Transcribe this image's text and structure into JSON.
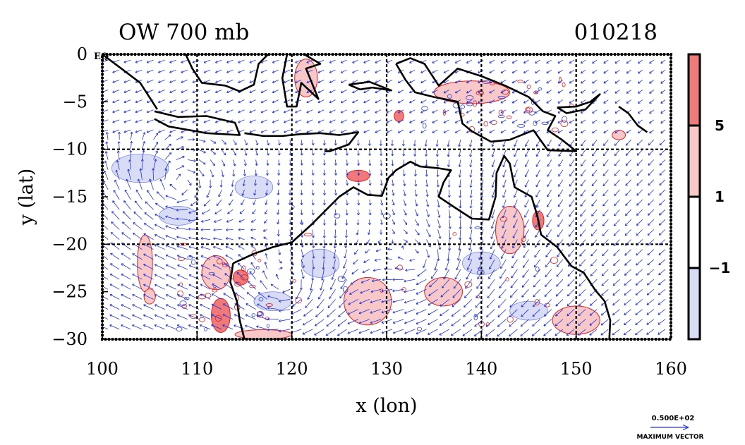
{
  "chart_data": {
    "type": "map",
    "title_left": "OW 700 mb",
    "title_right": "010218",
    "xlabel": "x (lon)",
    "ylabel": "y (lat)",
    "xlim": [
      100,
      160
    ],
    "ylim": [
      -30,
      0
    ],
    "xticks": [
      100,
      110,
      120,
      130,
      140,
      150,
      160
    ],
    "yticks": [
      0,
      -5,
      -10,
      -15,
      -20,
      -25,
      -30
    ],
    "ytick_labels": [
      "0",
      "−5",
      "−10",
      "−15",
      "−20",
      "−25",
      "−30"
    ],
    "eq_label": "EQ",
    "grid_dashed_lon": [
      110,
      120,
      130,
      140,
      150
    ],
    "grid_dashed_lat": [
      -10,
      -20
    ],
    "colorbar": {
      "labels": [
        "5",
        "1",
        "−1"
      ],
      "label_values": [
        5,
        1,
        -1
      ],
      "bands": [
        {
          "from": 5,
          "to": 9,
          "color": "#f07a7a"
        },
        {
          "from": 1,
          "to": 5,
          "color": "#f8c8c8"
        },
        {
          "from": -1,
          "to": 1,
          "color": "#ffffff"
        },
        {
          "from": -5,
          "to": -1,
          "color": "#d8dcf4"
        }
      ]
    },
    "vector_reference": {
      "value": "0.500E+02",
      "label": "MAXIMUM VECTOR"
    },
    "colors": {
      "positive": "#f07a7a",
      "weak_positive": "#f8c8c8",
      "negative": "#d8dcf4",
      "vectors": "#2233dd",
      "coast": "#000000"
    },
    "positive_areas": [
      {
        "lon": 127,
        "lat": -12.8,
        "rx": 1.2,
        "ry": 0.6,
        "strong": true
      },
      {
        "lon": 131.3,
        "lat": -6.5,
        "rx": 0.5,
        "ry": 0.6,
        "strong": true
      },
      {
        "lon": 114.6,
        "lat": -23.5,
        "rx": 0.8,
        "ry": 0.8,
        "strong": true
      },
      {
        "lon": 112.5,
        "lat": -27.5,
        "rx": 1.0,
        "ry": 1.8,
        "strong": true
      },
      {
        "lon": 143,
        "lat": -18.5,
        "rx": 1.5,
        "ry": 2.5,
        "strong": false
      },
      {
        "lon": 146,
        "lat": -17.5,
        "rx": 0.6,
        "ry": 1.0,
        "strong": true
      },
      {
        "lon": 104.5,
        "lat": -22,
        "rx": 0.8,
        "ry": 3,
        "strong": false
      },
      {
        "lon": 112,
        "lat": -23,
        "rx": 1.5,
        "ry": 1.8,
        "strong": false
      },
      {
        "lon": 128,
        "lat": -26,
        "rx": 2.5,
        "ry": 2.5,
        "strong": false
      },
      {
        "lon": 136,
        "lat": -25,
        "rx": 2,
        "ry": 1.5,
        "strong": false
      },
      {
        "lon": 150,
        "lat": -28,
        "rx": 2.5,
        "ry": 1.5,
        "strong": false
      },
      {
        "lon": 139,
        "lat": -4,
        "rx": 4,
        "ry": 1.2,
        "strong": false
      },
      {
        "lon": 121.5,
        "lat": -2.5,
        "rx": 1.2,
        "ry": 2,
        "strong": false
      },
      {
        "lon": 154.5,
        "lat": -8.5,
        "rx": 0.7,
        "ry": 0.5,
        "strong": false
      },
      {
        "lon": 117,
        "lat": -29.5,
        "rx": 3,
        "ry": 0.5,
        "strong": false
      },
      {
        "lon": 105,
        "lat": -25.5,
        "rx": 0.6,
        "ry": 0.8,
        "strong": false
      }
    ],
    "negative_areas": [
      {
        "lon": 123,
        "lat": -22,
        "rx": 2,
        "ry": 1.5
      },
      {
        "lon": 104,
        "lat": -12,
        "rx": 3,
        "ry": 1.5
      },
      {
        "lon": 116,
        "lat": -14,
        "rx": 2,
        "ry": 1.2
      },
      {
        "lon": 140,
        "lat": -22,
        "rx": 2,
        "ry": 1.2
      },
      {
        "lon": 118,
        "lat": -26,
        "rx": 2,
        "ry": 1
      },
      {
        "lon": 145,
        "lat": -27,
        "rx": 2,
        "ry": 1
      },
      {
        "lon": 108,
        "lat": -17,
        "rx": 2,
        "ry": 1
      }
    ],
    "wind_vectors": "Dense field of blue wind arrows over the whole domain (easterlies near 10S, anticyclonic gyres west of Australia, southward flow over Western Australia)"
  }
}
